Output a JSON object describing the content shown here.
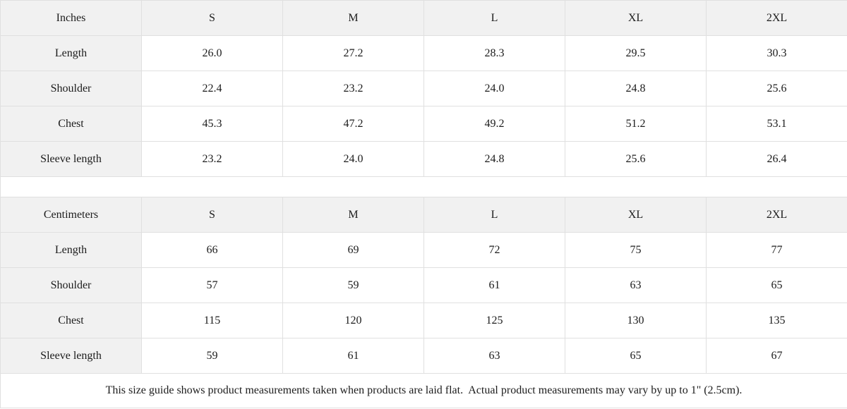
{
  "table_data": {
    "sizes": [
      "S",
      "M",
      "L",
      "XL",
      "2XL"
    ],
    "inches": {
      "unit_label": "Inches",
      "rows": [
        {
          "label": "Length",
          "values": [
            "26.0",
            "27.2",
            "28.3",
            "29.5",
            "30.3"
          ]
        },
        {
          "label": "Shoulder",
          "values": [
            "22.4",
            "23.2",
            "24.0",
            "24.8",
            "25.6"
          ]
        },
        {
          "label": "Chest",
          "values": [
            "45.3",
            "47.2",
            "49.2",
            "51.2",
            "53.1"
          ]
        },
        {
          "label": "Sleeve length",
          "values": [
            "23.2",
            "24.0",
            "24.8",
            "25.6",
            "26.4"
          ]
        }
      ]
    },
    "centimeters": {
      "unit_label": "Centimeters",
      "rows": [
        {
          "label": "Length",
          "values": [
            "66",
            "69",
            "72",
            "75",
            "77"
          ]
        },
        {
          "label": "Shoulder",
          "values": [
            "57",
            "59",
            "61",
            "63",
            "65"
          ]
        },
        {
          "label": "Chest",
          "values": [
            "115",
            "120",
            "125",
            "130",
            "135"
          ]
        },
        {
          "label": "Sleeve length",
          "values": [
            "59",
            "61",
            "63",
            "65",
            "67"
          ]
        }
      ]
    },
    "footer_note": "This size guide shows product measurements taken when products are laid flat.  Actual product measurements may vary by up to 1\" (2.5cm)."
  },
  "colors": {
    "header_bg": "#f1f1f1",
    "border": "#e0e0e0",
    "text": "#1c1c1c",
    "cell_bg": "#ffffff"
  }
}
